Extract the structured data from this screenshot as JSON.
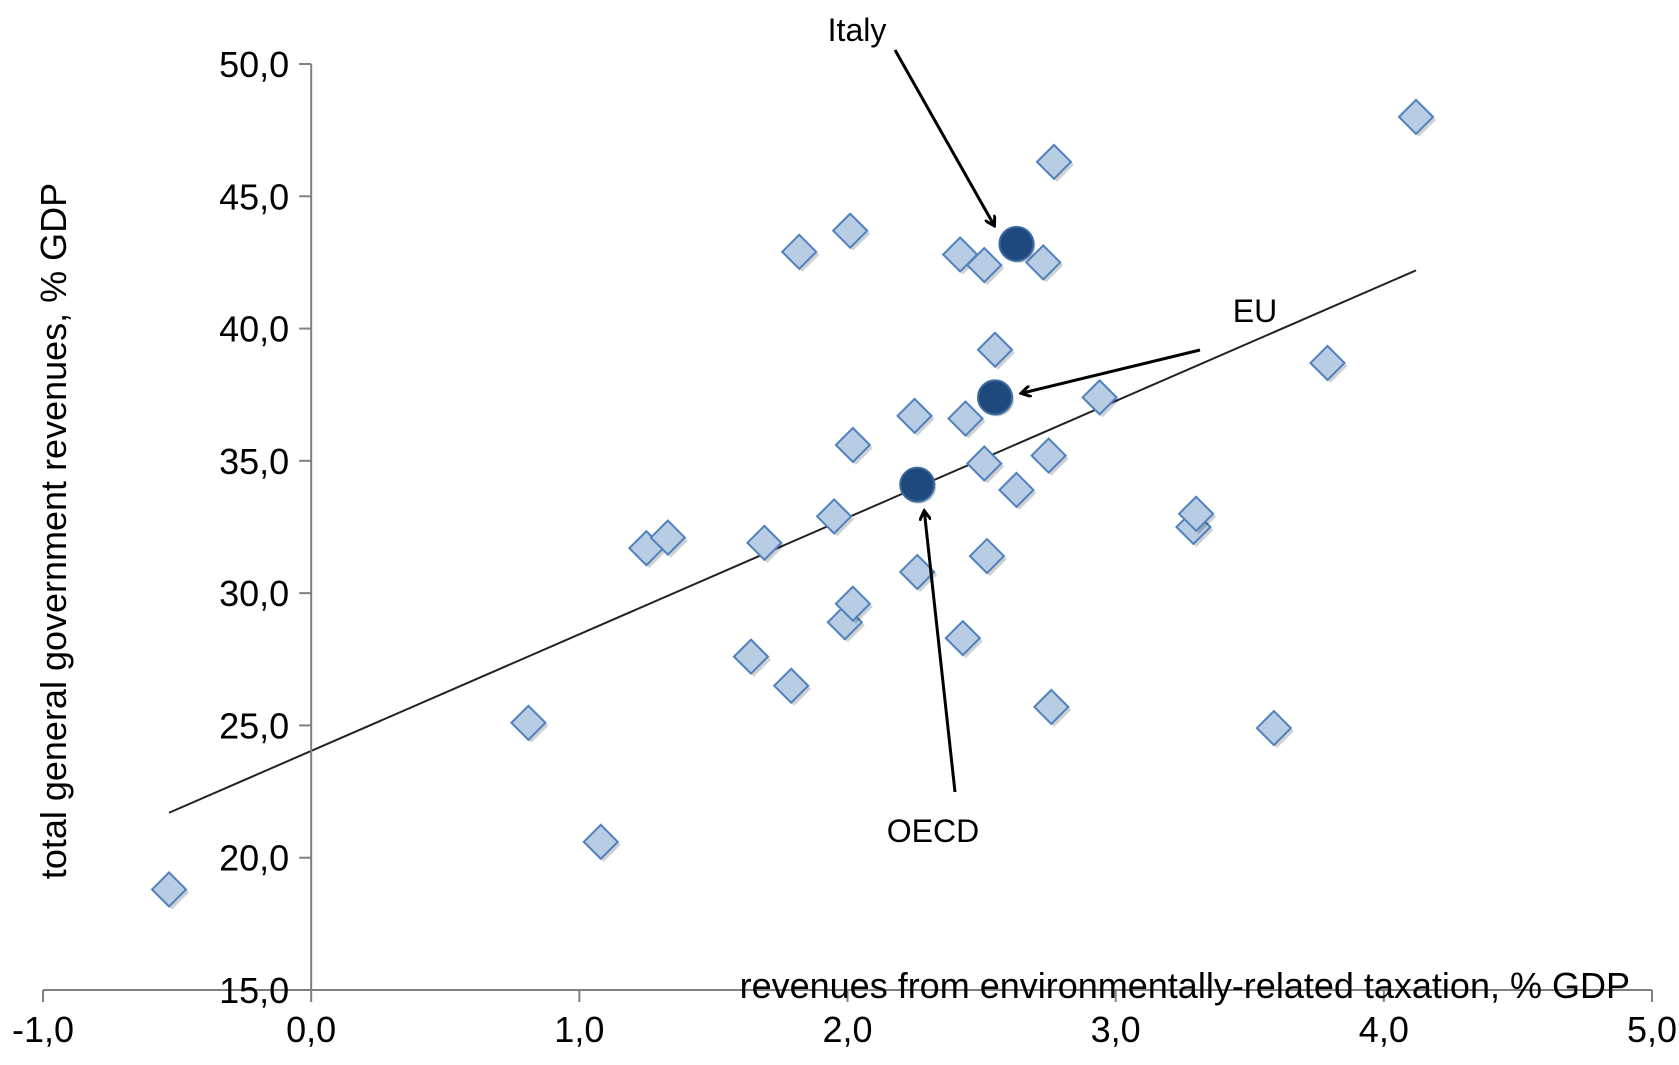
{
  "chart_data": {
    "type": "scatter",
    "xlabel": "revenues from environmentally-related taxation, % GDP",
    "ylabel": "total general government revenues, % GDP",
    "xlim": [
      -1.0,
      5.0
    ],
    "ylim": [
      15.0,
      50.0
    ],
    "x_ticks": [
      "-1,0",
      "0,0",
      "1,0",
      "2,0",
      "3,0",
      "4,0",
      "5,0"
    ],
    "y_ticks": [
      "15,0",
      "20,0",
      "25,0",
      "30,0",
      "35,0",
      "40,0",
      "45,0",
      "50,0"
    ],
    "x_tick_values": [
      -1,
      0,
      1,
      2,
      3,
      4,
      5
    ],
    "y_tick_values": [
      15,
      20,
      25,
      30,
      35,
      40,
      45,
      50
    ],
    "grid": false,
    "series": [
      {
        "marker": "diamond",
        "color": "#b8cce4",
        "edge_color": "#4f81bd",
        "points": [
          [
            -0.53,
            18.8
          ],
          [
            0.81,
            25.1
          ],
          [
            1.08,
            20.6
          ],
          [
            1.25,
            31.7
          ],
          [
            1.33,
            32.1
          ],
          [
            1.64,
            27.6
          ],
          [
            1.69,
            31.9
          ],
          [
            1.79,
            26.5
          ],
          [
            1.82,
            42.9
          ],
          [
            1.95,
            32.9
          ],
          [
            1.99,
            28.9
          ],
          [
            2.01,
            43.7
          ],
          [
            2.02,
            29.6
          ],
          [
            2.02,
            35.6
          ],
          [
            2.25,
            36.7
          ],
          [
            2.26,
            30.8
          ],
          [
            2.42,
            42.8
          ],
          [
            2.43,
            28.3
          ],
          [
            2.44,
            36.6
          ],
          [
            2.51,
            42.4
          ],
          [
            2.51,
            34.9
          ],
          [
            2.52,
            31.4
          ],
          [
            2.55,
            39.2
          ],
          [
            2.63,
            33.9
          ],
          [
            2.73,
            42.5
          ],
          [
            2.75,
            35.2
          ],
          [
            2.76,
            25.7
          ],
          [
            2.77,
            46.3
          ],
          [
            2.94,
            37.4
          ],
          [
            3.29,
            32.5
          ],
          [
            3.3,
            33.0
          ],
          [
            3.59,
            24.9
          ],
          [
            3.79,
            38.7
          ],
          [
            4.12,
            48.0
          ]
        ]
      },
      {
        "marker": "circle",
        "color": "#1f497d",
        "points": [
          [
            2.63,
            43.2
          ],
          [
            2.55,
            37.4
          ],
          [
            2.26,
            34.1
          ]
        ]
      }
    ],
    "trendline": {
      "from": [
        -0.53,
        21.7
      ],
      "to": [
        4.12,
        42.2
      ]
    },
    "annotations": [
      {
        "text": "Italy",
        "x": 2.63,
        "y": 43.2
      },
      {
        "text": "EU",
        "x": 2.55,
        "y": 37.4
      },
      {
        "text": "OECD",
        "x": 2.26,
        "y": 34.1
      }
    ]
  }
}
